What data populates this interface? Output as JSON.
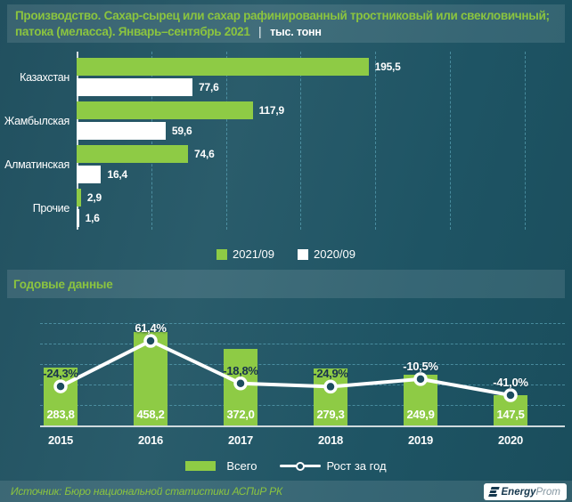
{
  "title": {
    "line1": "Производство. Сахар-сырец или сахар рафинированный тростниковый или свекловичный;",
    "line2": "патока (меласса). Январь–сентябрь 2021",
    "separator": "|",
    "unit": "тыс. тонн"
  },
  "annual_section_title": "Годовые данные",
  "footer": {
    "source": "Источник: Бюро национальной статистики АСПиР РК",
    "logo_bold": "Energy",
    "logo_light": "Prom"
  },
  "colors": {
    "green": "#8ecb45",
    "white_bar": "#ffffff",
    "background_teal": "#215765",
    "grid_dash": "#69b9cd",
    "dark_value_label": "#17324d",
    "marker_fill": "#1c4c5e"
  },
  "chart_data": [
    {
      "type": "bar",
      "orientation": "horizontal",
      "categories": [
        "Казахстан",
        "Жамбылская",
        "Алматинская",
        "Прочие"
      ],
      "series": [
        {
          "name": "2021/09",
          "color": "#8ecb45",
          "values": [
            195.5,
            117.9,
            74.6,
            2.9
          ],
          "labels": [
            "195,5",
            "117,9",
            "74,6",
            "2,9"
          ]
        },
        {
          "name": "2020/09",
          "color": "#ffffff",
          "values": [
            77.6,
            59.6,
            16.4,
            1.6
          ],
          "labels": [
            "77,6",
            "59,6",
            "16,4",
            "1,6"
          ]
        }
      ],
      "xlim": [
        0,
        327
      ],
      "grid_step": 50,
      "grid": true,
      "legend_position": "bottom"
    },
    {
      "type": "combo",
      "title": "Годовые данные",
      "categories": [
        "2015",
        "2016",
        "2017",
        "2018",
        "2019",
        "2020"
      ],
      "bar_series": {
        "name": "Всего",
        "color": "#8ecb45",
        "values": [
          283.8,
          458.2,
          372.0,
          279.3,
          249.9,
          147.5
        ],
        "labels": [
          "283,8",
          "458,2",
          "372,0",
          "279,3",
          "249,9",
          "147,5"
        ]
      },
      "line_series": {
        "name": "Рост за год",
        "color": "#ffffff",
        "values": [
          -24.3,
          61.4,
          -18.8,
          -24.9,
          -10.5,
          -41.0
        ],
        "labels": [
          "-24,3%",
          "61,4%",
          "-18,8%",
          "-24,9%",
          "-10,5%",
          "-41,0%"
        ]
      },
      "ylim": [
        0,
        500
      ],
      "grid_step": 100,
      "grid": true,
      "legend_position": "bottom"
    }
  ]
}
